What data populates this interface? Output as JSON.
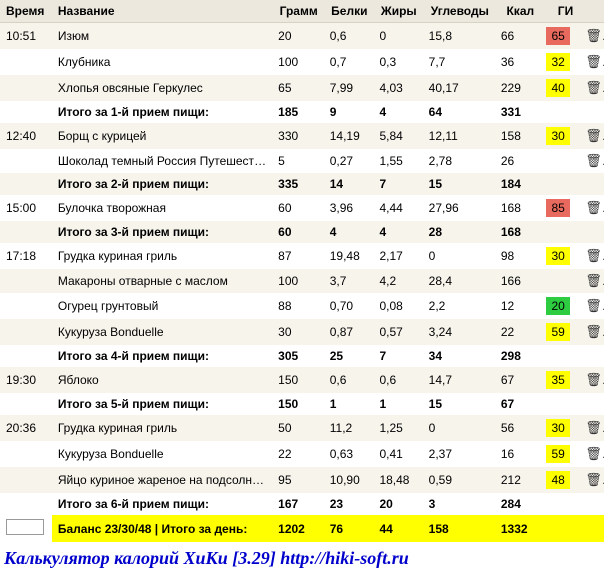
{
  "columns": {
    "time": "Время",
    "name": "Название",
    "grams": "Грамм",
    "protein": "Белки",
    "fat": "Жиры",
    "carbs": "Углеводы",
    "kcal": "Ккал",
    "gi": "ГИ"
  },
  "gi_colors": {
    "red": "#e86a5e",
    "yellow": "#ffff00",
    "green": "#2ecc40"
  },
  "trash_glyph": "🗑",
  "meals": [
    {
      "time": "10:51",
      "rows": [
        {
          "name": "Изюм",
          "g": "20",
          "p": "0,6",
          "f": "0",
          "c": "15,8",
          "k": "66",
          "gi": "65",
          "gic": "red"
        },
        {
          "name": "Клубника",
          "g": "100",
          "p": "0,7",
          "f": "0,3",
          "c": "7,7",
          "k": "36",
          "gi": "32",
          "gic": "yellow"
        },
        {
          "name": "Хлопья овсяные Геркулес",
          "g": "65",
          "p": "7,99",
          "f": "4,03",
          "c": "40,17",
          "k": "229",
          "gi": "40",
          "gic": "yellow"
        }
      ],
      "subtotal": {
        "label": "Итого за 1-й прием пищи:",
        "g": "185",
        "p": "9",
        "f": "4",
        "c": "64",
        "k": "331"
      }
    },
    {
      "time": "12:40",
      "rows": [
        {
          "name": "Борщ с курицей",
          "g": "330",
          "p": "14,19",
          "f": "5,84",
          "c": "12,11",
          "k": "158",
          "gi": "30",
          "gic": "yellow"
        },
        {
          "name": "Шоколад темный Россия Путешествие",
          "g": "5",
          "p": "0,27",
          "f": "1,55",
          "c": "2,78",
          "k": "26",
          "gi": "",
          "gic": ""
        }
      ],
      "subtotal": {
        "label": "Итого за 2-й прием пищи:",
        "g": "335",
        "p": "14",
        "f": "7",
        "c": "15",
        "k": "184"
      }
    },
    {
      "time": "15:00",
      "rows": [
        {
          "name": "Булочка творожная",
          "g": "60",
          "p": "3,96",
          "f": "4,44",
          "c": "27,96",
          "k": "168",
          "gi": "85",
          "gic": "red"
        }
      ],
      "subtotal": {
        "label": "Итого за 3-й прием пищи:",
        "g": "60",
        "p": "4",
        "f": "4",
        "c": "28",
        "k": "168"
      }
    },
    {
      "time": "17:18",
      "rows": [
        {
          "name": "Грудка куриная гриль",
          "g": "87",
          "p": "19,48",
          "f": "2,17",
          "c": "0",
          "k": "98",
          "gi": "30",
          "gic": "yellow"
        },
        {
          "name": "Макароны отварные с маслом",
          "g": "100",
          "p": "3,7",
          "f": "4,2",
          "c": "28,4",
          "k": "166",
          "gi": "",
          "gic": ""
        },
        {
          "name": "Огурец грунтовый",
          "g": "88",
          "p": "0,70",
          "f": "0,08",
          "c": "2,2",
          "k": "12",
          "gi": "20",
          "gic": "green"
        },
        {
          "name": "Кукуруза Bonduelle",
          "g": "30",
          "p": "0,87",
          "f": "0,57",
          "c": "3,24",
          "k": "22",
          "gi": "59",
          "gic": "yellow"
        }
      ],
      "subtotal": {
        "label": "Итого за 4-й прием пищи:",
        "g": "305",
        "p": "25",
        "f": "7",
        "c": "34",
        "k": "298"
      }
    },
    {
      "time": "19:30",
      "rows": [
        {
          "name": "Яблоко",
          "g": "150",
          "p": "0,6",
          "f": "0,6",
          "c": "14,7",
          "k": "67",
          "gi": "35",
          "gic": "yellow"
        }
      ],
      "subtotal": {
        "label": "Итого за 5-й прием пищи:",
        "g": "150",
        "p": "1",
        "f": "1",
        "c": "15",
        "k": "67"
      }
    },
    {
      "time": "20:36",
      "rows": [
        {
          "name": "Грудка куриная гриль",
          "g": "50",
          "p": "11,2",
          "f": "1,25",
          "c": "0",
          "k": "56",
          "gi": "30",
          "gic": "yellow"
        },
        {
          "name": "Кукуруза Bonduelle",
          "g": "22",
          "p": "0,63",
          "f": "0,41",
          "c": "2,37",
          "k": "16",
          "gi": "59",
          "gic": "yellow"
        },
        {
          "name": "Яйцо куриное жареное на подсолнечном ма",
          "g": "95",
          "p": "10,90",
          "f": "18,48",
          "c": "0,59",
          "k": "212",
          "gi": "48",
          "gic": "yellow"
        }
      ],
      "subtotal": {
        "label": "Итого за 6-й прием пищи:",
        "g": "167",
        "p": "23",
        "f": "20",
        "c": "3",
        "k": "284"
      }
    }
  ],
  "total": {
    "label": "Баланс 23/30/48  |  Итого за день:",
    "g": "1202",
    "p": "76",
    "f": "44",
    "c": "158",
    "k": "1332"
  },
  "footer": "Калькулятор калорий ХиКи [3.29] http://hiki-soft.ru"
}
